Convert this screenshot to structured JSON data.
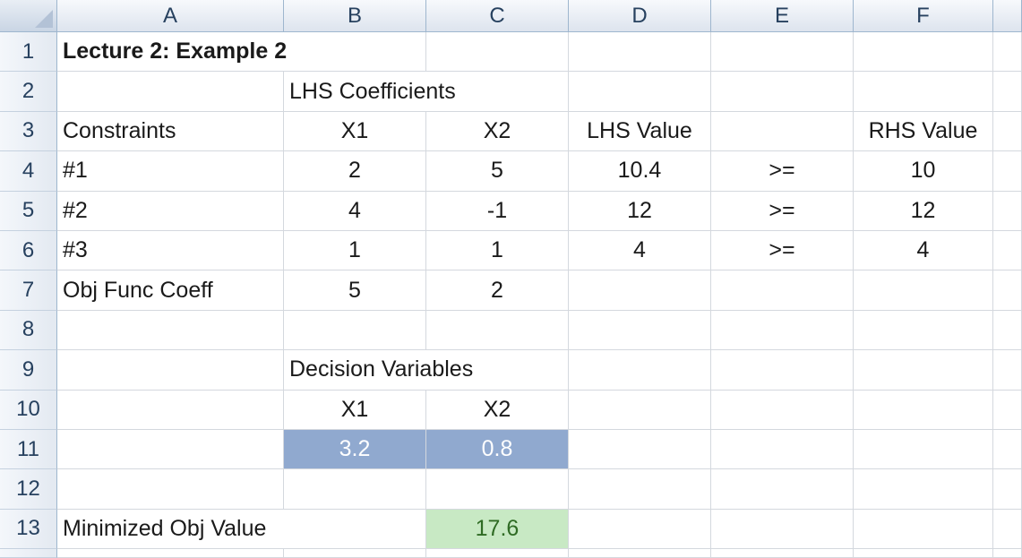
{
  "columns": [
    "A",
    "B",
    "C",
    "D",
    "E",
    "F"
  ],
  "rows": [
    "1",
    "2",
    "3",
    "4",
    "5",
    "6",
    "7",
    "8",
    "9",
    "10",
    "11",
    "12",
    "13"
  ],
  "title": "Lecture 2: Example 2",
  "lhs_coefficients_label": "LHS Coefficients",
  "headers": {
    "constraints": "Constraints",
    "x1": "X1",
    "x2": "X2",
    "lhs_value": "LHS Value",
    "rhs_value": "RHS Value"
  },
  "constraints": [
    {
      "name": "#1",
      "x1": "2",
      "x2": "5",
      "lhs": "10.4",
      "op": ">=",
      "rhs": "10"
    },
    {
      "name": "#2",
      "x1": "4",
      "x2": "-1",
      "lhs": "12",
      "op": ">=",
      "rhs": "12"
    },
    {
      "name": "#3",
      "x1": "1",
      "x2": "1",
      "lhs": "4",
      "op": ">=",
      "rhs": "4"
    }
  ],
  "objective": {
    "label": "Obj Func Coeff",
    "x1": "5",
    "x2": "2"
  },
  "decision_variables": {
    "label": "Decision Variables",
    "x1_label": "X1",
    "x2_label": "X2",
    "x1_value": "3.2",
    "x2_value": "0.8"
  },
  "result": {
    "label": "Minimized Obj Value",
    "value": "17.6"
  },
  "colors": {
    "decision_fill": "#90a9cf",
    "result_fill": "#c8e9c4",
    "header_fill": "#dde4ee"
  }
}
